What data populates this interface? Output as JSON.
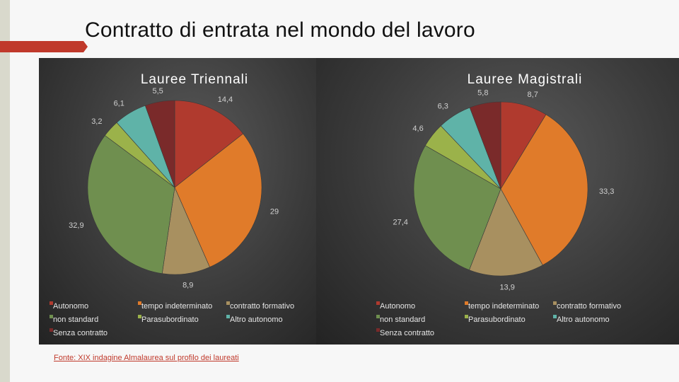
{
  "slide": {
    "title": "Contratto di entrata nel mondo del lavoro",
    "source": "Fonte: XIX indagine Almalaurea sul profilo dei laureati"
  },
  "chart_data": [
    {
      "type": "pie",
      "title": "Lauree Triennali",
      "categories": [
        "Autonomo",
        "tempo indeterminato",
        "contratto formativo",
        "non standard",
        "Parasubordinato",
        "Altro autonomo",
        "Senza contratto"
      ],
      "values": [
        14.4,
        29,
        8.9,
        32.9,
        3.2,
        6.1,
        5.5
      ],
      "labels": [
        "14,4",
        "29",
        "8,9",
        "32,9",
        "3,2",
        "6,1",
        "5,5"
      ],
      "colors": [
        "#b03a2e",
        "#e07b2a",
        "#a89060",
        "#6f8f4f",
        "#9bb24a",
        "#5fb3a8",
        "#7a2a2a"
      ],
      "legend_position": "bottom"
    },
    {
      "type": "pie",
      "title": "Lauree Magistrali",
      "categories": [
        "Autonomo",
        "tempo indeterminato",
        "contratto formativo",
        "non standard",
        "Parasubordinato",
        "Altro autonomo",
        "Senza contratto"
      ],
      "values": [
        8.7,
        33.3,
        13.9,
        27.4,
        4.6,
        6.3,
        5.8
      ],
      "labels": [
        "8,7",
        "33,3",
        "13,9",
        "27,4",
        "4,6",
        "6,3",
        "5,8"
      ],
      "colors": [
        "#b03a2e",
        "#e07b2a",
        "#a89060",
        "#6f8f4f",
        "#9bb24a",
        "#5fb3a8",
        "#7a2a2a"
      ],
      "legend_position": "bottom"
    }
  ]
}
